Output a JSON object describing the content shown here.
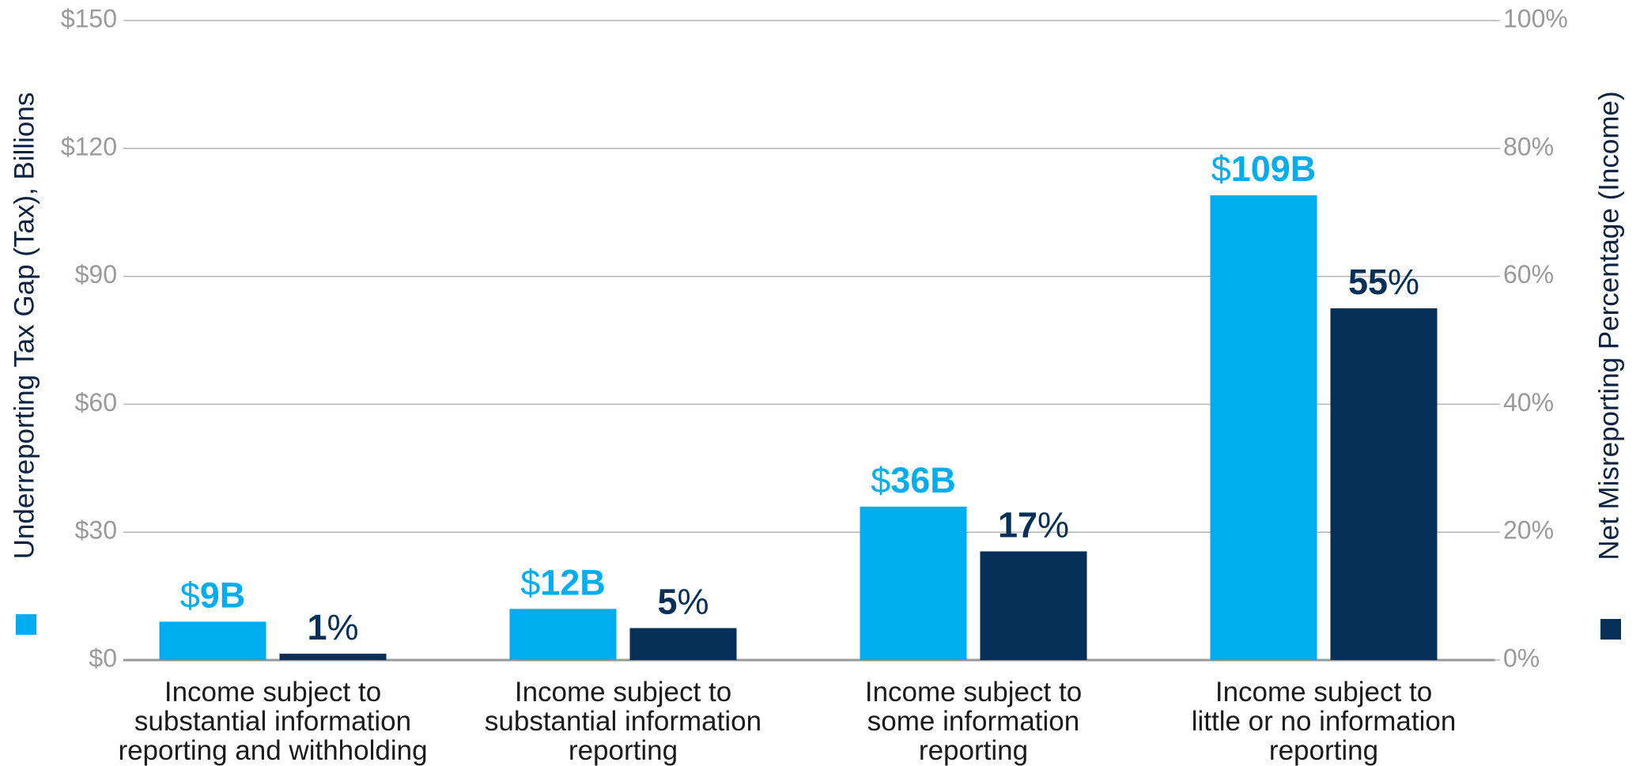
{
  "chart_data": {
    "type": "bar",
    "categories": [
      "Income subject to\nsubstantial information\nreporting and withholding",
      "Income subject to\nsubstantial information\nreporting",
      "Income subject to\nsome information\nreporting",
      "Income subject to\nlittle or no information\nreporting"
    ],
    "series": [
      {
        "name": "Underreporting Tax Gap (Tax), Billions",
        "color": "#00aeef",
        "values": [
          9,
          12,
          36,
          109
        ],
        "value_labels": [
          "$9B",
          "$12B",
          "$36B",
          "$109B"
        ]
      },
      {
        "name": "Net Misreporting Percentage (Income)",
        "color": "#063057",
        "axis": "y2",
        "values": [
          1,
          5,
          17,
          55
        ],
        "value_labels": [
          "1%",
          "5%",
          "17%",
          "55%"
        ]
      }
    ],
    "ylim": [
      0,
      150
    ],
    "yticks": [
      {
        "value": 0,
        "label": "$0"
      },
      {
        "value": 30,
        "label": "$30"
      },
      {
        "value": 60,
        "label": "$60"
      },
      {
        "value": 90,
        "label": "$90"
      },
      {
        "value": 120,
        "label": "$120"
      },
      {
        "value": 150,
        "label": "$150"
      }
    ],
    "y2lim": [
      0,
      100
    ],
    "y2ticks": [
      {
        "value": 0,
        "label": "0%"
      },
      {
        "value": 20,
        "label": "20%"
      },
      {
        "value": 40,
        "label": "40%"
      },
      {
        "value": 60,
        "label": "60%"
      },
      {
        "value": 80,
        "label": "80%"
      },
      {
        "value": 100,
        "label": "100%"
      }
    ],
    "grid": true
  }
}
